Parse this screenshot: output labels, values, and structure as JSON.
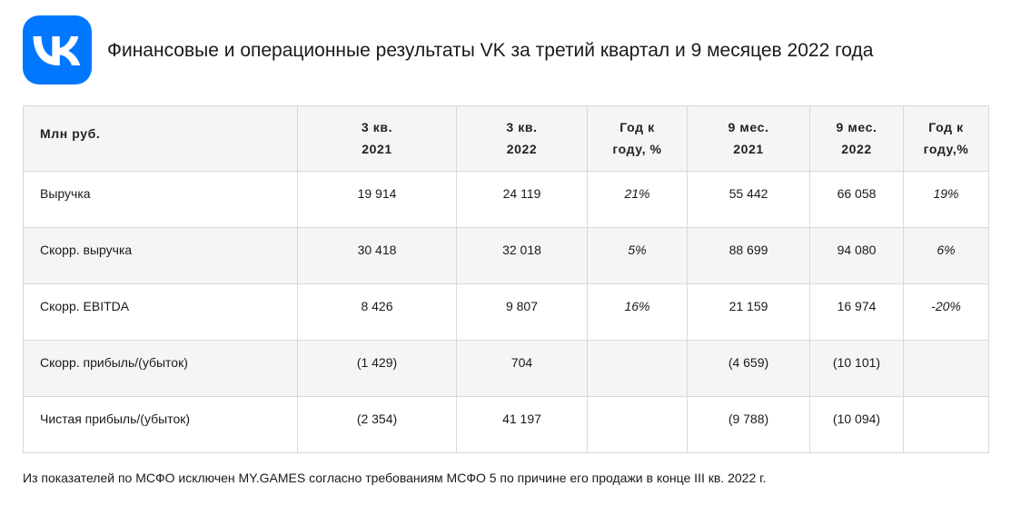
{
  "header": {
    "logo_icon": "vk-logo-icon",
    "title": "Финансовые и операционные результаты VK за третий квартал и 9 месяцев 2022 года"
  },
  "colors": {
    "brand": "#0077ff",
    "stripe": "#f5f5f5",
    "border": "#d9d9d9"
  },
  "table": {
    "headers": [
      {
        "line1": "Млн руб.",
        "line2": ""
      },
      {
        "line1": "3 кв.",
        "line2": "2021"
      },
      {
        "line1": "3 кв.",
        "line2": "2022"
      },
      {
        "line1": "Год к",
        "line2": "году, %"
      },
      {
        "line1": "9 мес.",
        "line2": "2021"
      },
      {
        "line1": "9 мес.",
        "line2": "2022"
      },
      {
        "line1": "Год к",
        "line2": "году,%"
      }
    ],
    "rows": [
      [
        "Выручка",
        "19 914",
        "24 119",
        "21%",
        "55 442",
        "66 058",
        "19%"
      ],
      [
        "Скорр. выручка",
        "30 418",
        "32 018",
        "5%",
        "88 699",
        "94 080",
        "6%"
      ],
      [
        "Скорр. EBITDA",
        "8 426",
        "9 807",
        "16%",
        "21 159",
        "16 974",
        "-20%"
      ],
      [
        "Скорр. прибыль/(убыток)",
        "(1 429)",
        "704",
        "",
        "(4 659)",
        "(10 101)",
        ""
      ],
      [
        "Чистая прибыль/(убыток)",
        "(2 354)",
        "41 197",
        "",
        "(9 788)",
        "(10 094)",
        ""
      ]
    ]
  },
  "footnote": "Из показателей по МСФО исключен MY.GAMES согласно требованиям МСФО 5 по причине его продажи в конце III кв. 2022 г."
}
